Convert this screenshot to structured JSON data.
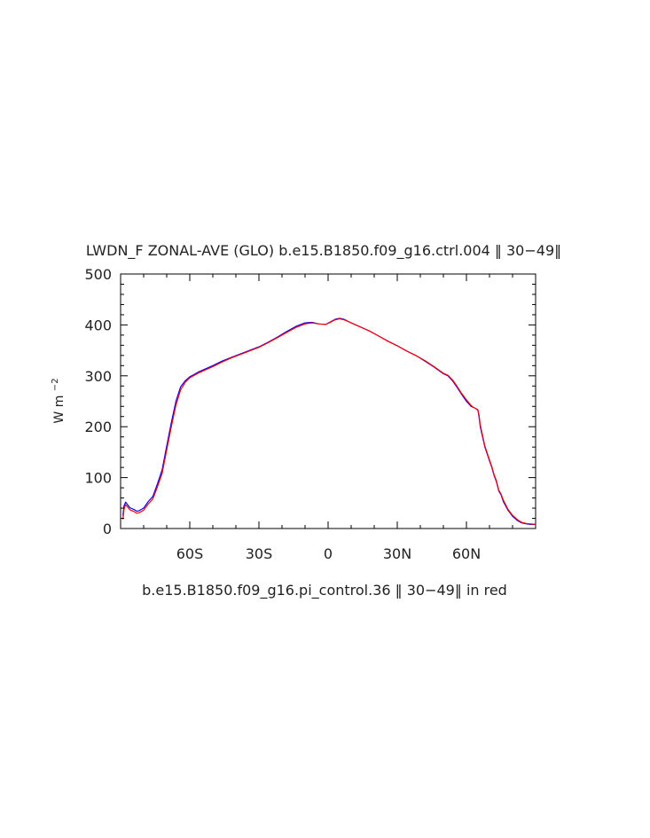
{
  "chart_data": {
    "type": "line",
    "title": "LWDN_F ZONAL-AVE (GLO) b.e15.B1850.f09_g16.ctrl.004 ‖ 30−49‖",
    "subtitle": "b.e15.B1850.f09_g16.pi_control.36 ‖ 30−49‖ in red",
    "xlabel": "",
    "ylabel": "W m",
    "ylabel_sup": "−2",
    "xlim": [
      -90,
      90
    ],
    "ylim": [
      0,
      500
    ],
    "x_ticks": [
      {
        "value": -60,
        "label": "60S"
      },
      {
        "value": -30,
        "label": "30S"
      },
      {
        "value": 0,
        "label": "0"
      },
      {
        "value": 30,
        "label": "30N"
      },
      {
        "value": 60,
        "label": "60N"
      }
    ],
    "y_ticks": [
      {
        "value": 0,
        "label": "0"
      },
      {
        "value": 100,
        "label": "100"
      },
      {
        "value": 200,
        "label": "200"
      },
      {
        "value": 300,
        "label": "300"
      },
      {
        "value": 400,
        "label": "400"
      },
      {
        "value": 500,
        "label": "500"
      }
    ],
    "grid": false,
    "series": [
      {
        "color": "#0000ff",
        "x": [
          -89,
          -88.5,
          -87.8,
          -86,
          -84,
          -83,
          -82,
          -80,
          -78,
          -76,
          -74,
          -72,
          -70,
          -68,
          -66,
          -64,
          -62,
          -60,
          -58,
          -56,
          -54,
          -50,
          -46,
          -42,
          -38,
          -34,
          -30,
          -26,
          -22,
          -18,
          -14,
          -10,
          -7,
          -4,
          -1,
          1,
          3,
          5,
          7,
          10,
          14,
          18,
          22,
          26,
          30,
          34,
          38,
          42,
          46,
          50,
          52,
          54,
          56,
          58,
          60,
          62,
          63,
          64,
          65,
          65.5,
          66,
          67,
          68,
          70,
          71,
          72,
          73,
          74,
          75,
          76,
          78,
          80,
          82,
          84,
          86,
          88,
          90
        ],
        "values": [
          25,
          45,
          52,
          41,
          37,
          34,
          35,
          40,
          53,
          63,
          88,
          115,
          162,
          208,
          250,
          278,
          290,
          298,
          303,
          308,
          312,
          320,
          329,
          336,
          343,
          350,
          357,
          366,
          376,
          387,
          397,
          404,
          405,
          402,
          401,
          406,
          411,
          413,
          411,
          404,
          396,
          388,
          378,
          368,
          359,
          349,
          340,
          329,
          317,
          304,
          300,
          290,
          277,
          263,
          250,
          240,
          238,
          236,
          232,
          218,
          200,
          180,
          160,
          133,
          120,
          104,
          92,
          74,
          66,
          53,
          36,
          24,
          16,
          11,
          9,
          8,
          8
        ]
      },
      {
        "color": "#ff0000",
        "x": [
          -89,
          -88.5,
          -87.8,
          -86,
          -84,
          -83,
          -82,
          -80,
          -78,
          -76,
          -74,
          -72,
          -70,
          -68,
          -66,
          -64,
          -62,
          -60,
          -58,
          -56,
          -54,
          -50,
          -46,
          -42,
          -38,
          -34,
          -30,
          -26,
          -22,
          -18,
          -14,
          -10,
          -7,
          -4,
          -1,
          1,
          3,
          5,
          7,
          10,
          14,
          18,
          22,
          26,
          30,
          34,
          38,
          42,
          46,
          50,
          52,
          54,
          56,
          58,
          60,
          62,
          63,
          64,
          65,
          65.5,
          66,
          67,
          68,
          70,
          71,
          72,
          73,
          74,
          75,
          76,
          78,
          80,
          82,
          84,
          86,
          88,
          90
        ],
        "values": [
          18,
          38,
          47,
          37,
          33,
          30,
          31,
          36,
          48,
          58,
          82,
          108,
          154,
          200,
          242,
          272,
          287,
          296,
          301,
          306,
          310,
          318,
          327,
          335,
          342,
          349,
          356,
          365,
          375,
          385,
          395,
          402,
          404,
          402,
          401,
          405,
          410,
          412,
          410,
          404,
          396,
          388,
          378,
          368,
          359,
          349,
          340,
          330,
          318,
          305,
          301,
          292,
          279,
          265,
          253,
          242,
          238,
          236,
          233,
          222,
          204,
          183,
          162,
          135,
          122,
          106,
          94,
          76,
          68,
          56,
          38,
          26,
          18,
          12,
          10,
          9,
          8
        ]
      }
    ]
  }
}
